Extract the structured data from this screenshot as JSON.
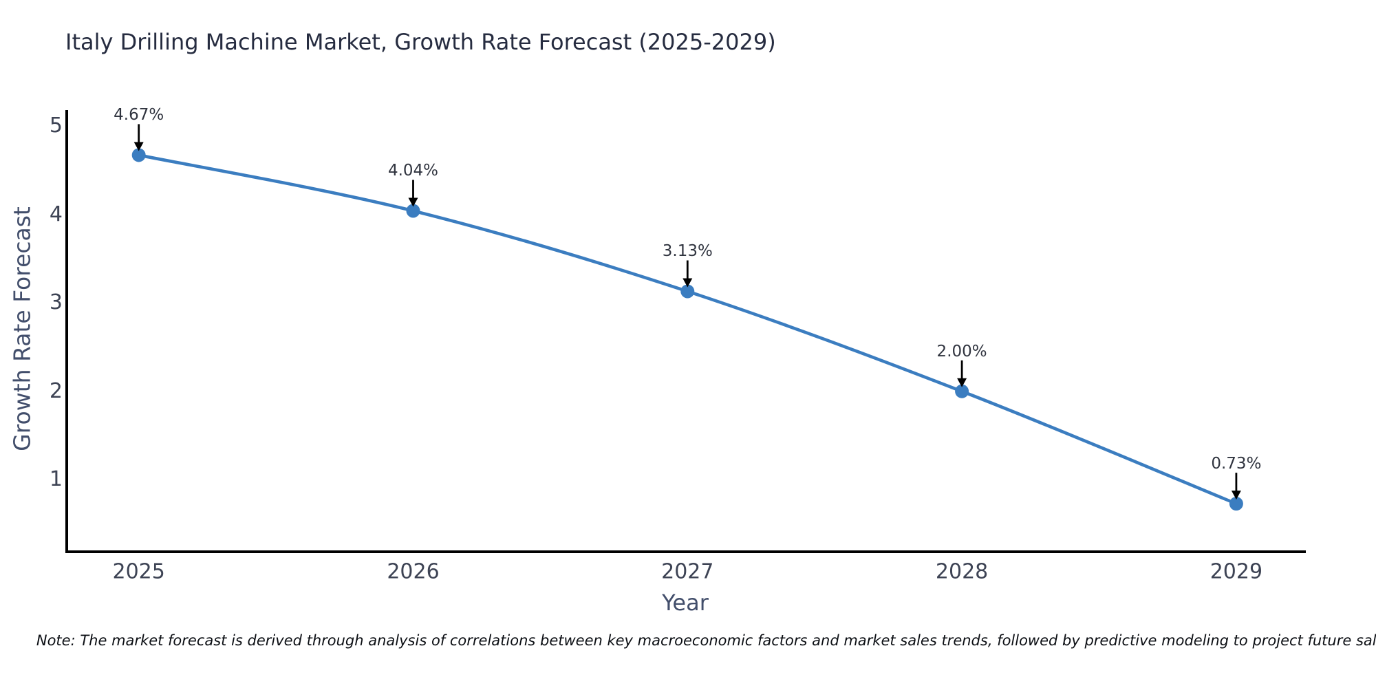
{
  "page": {
    "note": "Note: The market forecast is derived through analysis of correlations between key macroeconomic factors and market sales trends, followed by predictive modeling to project future sales."
  },
  "chart_data": {
    "type": "line",
    "title": "Italy Drilling Machine Market, Growth Rate Forecast (2025-2029)",
    "xlabel": "Year",
    "ylabel": "Growth Rate Forecast",
    "x": [
      2025,
      2026,
      2027,
      2028,
      2029
    ],
    "series": [
      {
        "name": "Growth Rate Forecast",
        "values": [
          4.67,
          4.04,
          3.13,
          2.0,
          0.73
        ],
        "point_labels": [
          "4.67%",
          "4.04%",
          "3.13%",
          "2.00%",
          "0.73%"
        ]
      }
    ],
    "yticks": [
      5,
      4,
      3,
      2,
      1
    ],
    "ylim": [
      0.19,
      5.18
    ],
    "xlim": [
      2024.74,
      2029.25
    ],
    "grid": false,
    "legend": false,
    "annotation_style": "value label above point with downward black arrow",
    "colors": {
      "line": "#3b7dc0",
      "marker": "#3b7dc0",
      "arrow": "#000000",
      "spine": "#000000",
      "title": "#262c40",
      "tick": "#3d4354",
      "axis_label": "#424e6b"
    }
  }
}
